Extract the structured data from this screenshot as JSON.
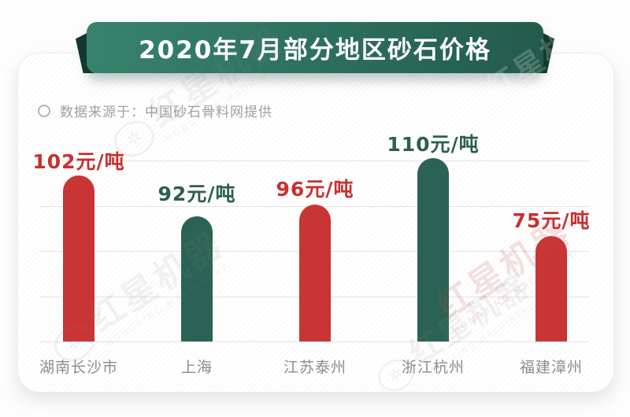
{
  "banner": {
    "title": "2020年7月部分地区砂石价格",
    "bg_from": "#38836D",
    "bg_to": "#235A4B",
    "fold_color": "#143A30"
  },
  "source": {
    "label": "数据来源于：中国砂石骨料网提供"
  },
  "watermark": {
    "text": "红星机器",
    "subtext": "HONGXING MACHINERY",
    "gear_glyph": "✲"
  },
  "colors": {
    "bar_red": "#C93434",
    "bar_green": "#2A6355",
    "label_red": "#C92F2F",
    "label_green": "#2B5F50",
    "gridline": "#E3E3E3",
    "category_text": "#8C8C8C",
    "source_text": "#A0A0A0"
  },
  "chart_data": {
    "type": "bar",
    "title": "2020年7月部分地区砂石价格",
    "source_note": "数据来源于：中国砂石骨料网提供",
    "unit": "元/吨",
    "categories": [
      "湖南长沙市",
      "上海",
      "江苏泰州",
      "浙江杭州",
      "福建漳州"
    ],
    "values": [
      102,
      92,
      96,
      110,
      75
    ],
    "value_labels": [
      "102元/吨",
      "92元/吨",
      "96元/吨",
      "110元/吨",
      "75元/吨"
    ],
    "bar_colors": [
      "#C93434",
      "#2A6355",
      "#C93434",
      "#2A6355",
      "#C93434"
    ],
    "xlabel": "",
    "ylabel": "",
    "ylim": [
      0,
      120
    ],
    "grid": true,
    "legend": false
  }
}
